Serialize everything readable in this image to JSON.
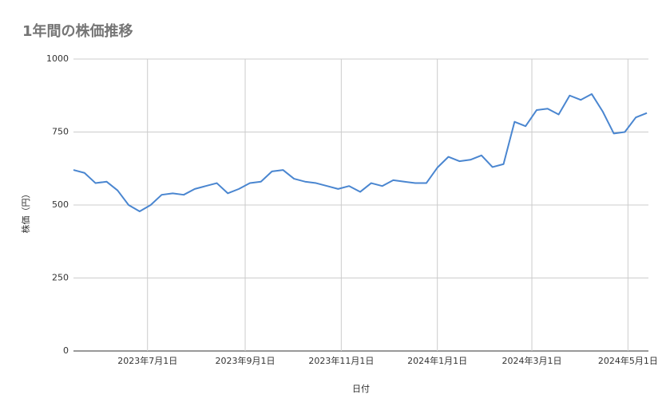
{
  "chart_data": {
    "type": "line",
    "title": "1年間の株価推移",
    "x_label": "日付",
    "y_label": "株価（円）",
    "x": [
      "2023-05-15",
      "2023-05-22",
      "2023-05-29",
      "2023-06-05",
      "2023-06-12",
      "2023-06-19",
      "2023-06-26",
      "2023-07-03",
      "2023-07-10",
      "2023-07-17",
      "2023-07-24",
      "2023-07-31",
      "2023-08-07",
      "2023-08-14",
      "2023-08-21",
      "2023-08-28",
      "2023-09-04",
      "2023-09-11",
      "2023-09-18",
      "2023-09-25",
      "2023-10-02",
      "2023-10-09",
      "2023-10-16",
      "2023-10-23",
      "2023-10-30",
      "2023-11-06",
      "2023-11-13",
      "2023-11-20",
      "2023-11-27",
      "2023-12-04",
      "2023-12-11",
      "2023-12-18",
      "2023-12-25",
      "2024-01-01",
      "2024-01-08",
      "2024-01-15",
      "2024-01-22",
      "2024-01-29",
      "2024-02-05",
      "2024-02-12",
      "2024-02-19",
      "2024-02-26",
      "2024-03-04",
      "2024-03-11",
      "2024-03-18",
      "2024-03-25",
      "2024-04-01",
      "2024-04-08",
      "2024-04-15",
      "2024-04-22",
      "2024-04-29",
      "2024-05-06",
      "2024-05-13"
    ],
    "series": [
      {
        "name": "株価",
        "color": "#4a86d0",
        "values": [
          620,
          610,
          575,
          580,
          550,
          500,
          478,
          500,
          535,
          540,
          535,
          555,
          565,
          575,
          540,
          555,
          575,
          580,
          615,
          620,
          590,
          580,
          575,
          565,
          555,
          565,
          545,
          575,
          565,
          585,
          580,
          575,
          575,
          628,
          665,
          650,
          655,
          670,
          630,
          640,
          785,
          770,
          825,
          830,
          810,
          875,
          860,
          880,
          820,
          745,
          750,
          800,
          815
        ]
      }
    ],
    "xlim": [
      "2023-05-15",
      "2024-05-14"
    ],
    "xticks": [
      {
        "value": "2023-07-01",
        "label": "2023年7月1日"
      },
      {
        "value": "2023-09-01",
        "label": "2023年9月1日"
      },
      {
        "value": "2023-11-01",
        "label": "2023年11月1日"
      },
      {
        "value": "2024-01-01",
        "label": "2024年1月1日"
      },
      {
        "value": "2024-03-01",
        "label": "2024年3月1日"
      },
      {
        "value": "2024-05-01",
        "label": "2024年5月1日"
      }
    ],
    "ylim": [
      0,
      1000
    ],
    "yticks": [
      0,
      250,
      500,
      750,
      1000
    ],
    "grid": true
  }
}
